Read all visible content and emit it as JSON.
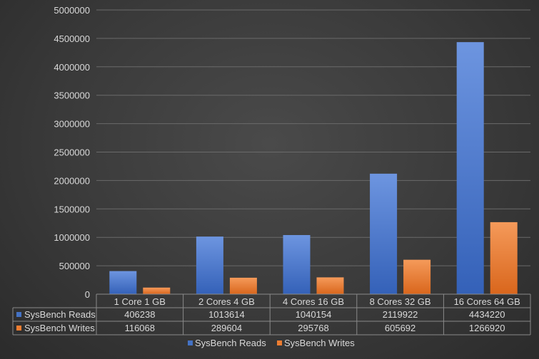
{
  "chart_data": {
    "type": "bar",
    "title": "",
    "xlabel": "",
    "ylabel": "",
    "categories": [
      "1  Core 1 GB",
      "2  Cores 4 GB",
      "4  Cores 16 GB",
      "8  Cores 32 GB",
      "16  Cores 64 GB"
    ],
    "series": [
      {
        "name": "SysBench Reads",
        "values": [
          406238,
          1013614,
          1040154,
          2119922,
          4434220
        ],
        "color": "#4472c4"
      },
      {
        "name": "SysBench Writes",
        "values": [
          116068,
          289604,
          295768,
          605692,
          1266920
        ],
        "color": "#ed7d31"
      }
    ],
    "ylim": [
      0,
      5000000
    ],
    "yticks": [
      0,
      500000,
      1000000,
      1500000,
      2000000,
      2500000,
      3000000,
      3500000,
      4000000,
      4500000,
      5000000
    ],
    "grid": true,
    "legend": "bottom",
    "data_table": true
  }
}
